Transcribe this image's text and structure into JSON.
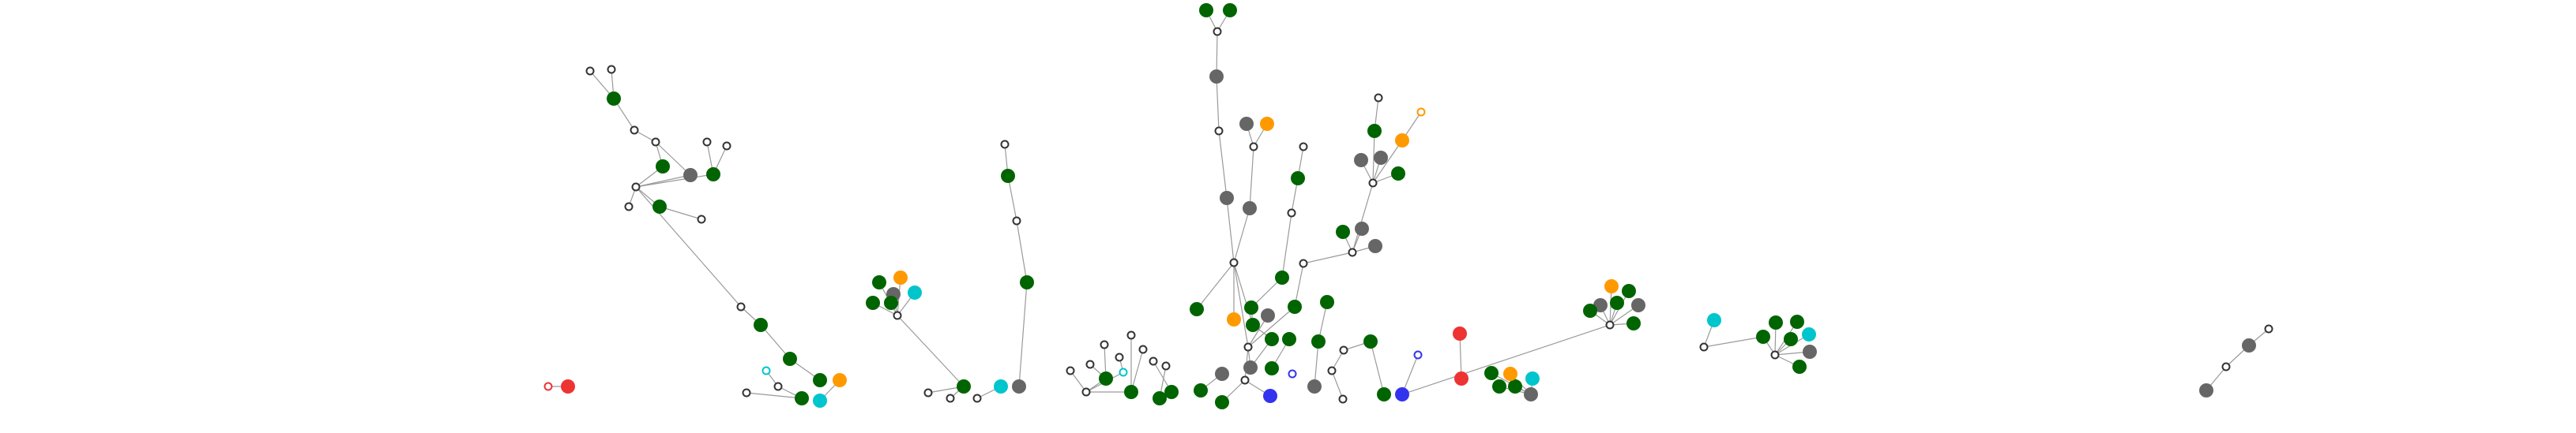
{
  "diagram": {
    "type": "network-tree",
    "background": "#ffffff",
    "edge_color": "#9a9a9a",
    "node_colors": {
      "green": "#006400",
      "gray": "#666666",
      "orange": "#ff9900",
      "cyan": "#00c5cd",
      "red": "#ee3333",
      "blue": "#3333ee",
      "hub_stroke": "#333333"
    }
  }
}
